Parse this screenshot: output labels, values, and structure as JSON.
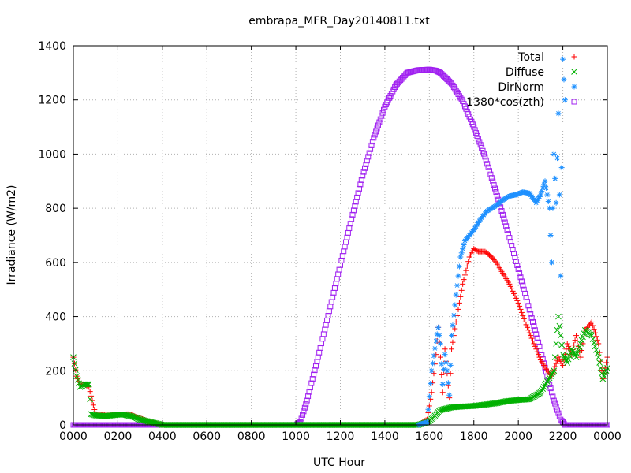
{
  "chart_data": {
    "type": "scatter",
    "title": "embrapa_MFR_Day20140811.txt",
    "xlabel": "UTC Hour",
    "ylabel": "Irradiance (W/m2)",
    "xlim": [
      0,
      24
    ],
    "ylim": [
      0,
      1400
    ],
    "grid": true,
    "legend_position": "top-right",
    "x_ticks": [
      {
        "v": 0,
        "label": "0000"
      },
      {
        "v": 2,
        "label": "0200"
      },
      {
        "v": 4,
        "label": "0400"
      },
      {
        "v": 6,
        "label": "0600"
      },
      {
        "v": 8,
        "label": "0800"
      },
      {
        "v": 10,
        "label": "1000"
      },
      {
        "v": 12,
        "label": "1200"
      },
      {
        "v": 14,
        "label": "1400"
      },
      {
        "v": 16,
        "label": "1600"
      },
      {
        "v": 18,
        "label": "1800"
      },
      {
        "v": 20,
        "label": "2000"
      },
      {
        "v": 22,
        "label": "2200"
      },
      {
        "v": 24,
        "label": "0000"
      }
    ],
    "y_ticks": [
      {
        "v": 0,
        "label": "0"
      },
      {
        "v": 200,
        "label": "200"
      },
      {
        "v": 400,
        "label": "400"
      },
      {
        "v": 600,
        "label": "600"
      },
      {
        "v": 800,
        "label": "800"
      },
      {
        "v": 1000,
        "label": "1000"
      },
      {
        "v": 1200,
        "label": "1200"
      },
      {
        "v": 1400,
        "label": "1400"
      }
    ],
    "series": [
      {
        "name": "Total",
        "marker": "plus",
        "color": "#ff0000",
        "x": [
          0.0,
          0.15,
          0.3,
          0.5,
          0.7,
          1.0,
          1.5,
          2.0,
          2.5,
          3.0,
          3.5,
          4.0,
          6.0,
          8.0,
          10.0,
          12.0,
          14.0,
          15.5,
          15.9,
          16.1,
          16.3,
          16.4,
          16.5,
          16.6,
          16.7,
          16.8,
          16.9,
          17.0,
          17.2,
          17.5,
          17.8,
          18.0,
          18.2,
          18.5,
          18.8,
          19.0,
          19.3,
          19.6,
          20.0,
          20.3,
          20.6,
          21.0,
          21.3,
          21.5,
          21.8,
          22.0,
          22.2,
          22.4,
          22.6,
          22.8,
          23.0,
          23.3,
          23.6,
          23.8,
          24.0
        ],
        "y": [
          250,
          180,
          150,
          150,
          140,
          40,
          35,
          38,
          40,
          25,
          10,
          0,
          0,
          0,
          0,
          0,
          0,
          0,
          20,
          120,
          260,
          360,
          250,
          120,
          280,
          190,
          100,
          280,
          380,
          520,
          620,
          650,
          640,
          640,
          620,
          600,
          560,
          520,
          450,
          380,
          320,
          240,
          200,
          180,
          250,
          220,
          300,
          260,
          330,
          250,
          350,
          380,
          300,
          170,
          250
        ]
      },
      {
        "name": "Diffuse",
        "marker": "cross",
        "color": "#00b000",
        "x": [
          0.0,
          0.15,
          0.3,
          0.5,
          0.7,
          0.8,
          1.0,
          1.5,
          2.0,
          2.3,
          2.7,
          3.0,
          3.5,
          4.0,
          6.0,
          8.0,
          10.0,
          12.0,
          14.0,
          15.5,
          15.9,
          16.0,
          16.2,
          16.5,
          17.0,
          17.5,
          18.0,
          18.5,
          19.0,
          19.5,
          20.0,
          20.5,
          21.0,
          21.3,
          21.6,
          21.8,
          22.0,
          22.2,
          22.4,
          22.6,
          22.8,
          23.0,
          23.3,
          23.6,
          23.8,
          24.0
        ],
        "y": [
          250,
          180,
          140,
          150,
          150,
          40,
          35,
          33,
          38,
          38,
          30,
          20,
          10,
          0,
          0,
          0,
          0,
          0,
          0,
          0,
          10,
          15,
          30,
          55,
          65,
          68,
          70,
          75,
          80,
          88,
          92,
          95,
          120,
          160,
          200,
          400,
          260,
          230,
          280,
          250,
          300,
          350,
          330,
          250,
          170,
          210
        ]
      },
      {
        "name": "DirNorm",
        "marker": "star",
        "color": "#1e90ff",
        "x": [
          15.5,
          15.9,
          16.1,
          16.3,
          16.4,
          16.5,
          16.6,
          16.7,
          16.8,
          16.9,
          17.0,
          17.2,
          17.4,
          17.6,
          17.8,
          18.0,
          18.3,
          18.6,
          19.0,
          19.3,
          19.6,
          19.9,
          20.2,
          20.5,
          20.8,
          21.0,
          21.2,
          21.4,
          21.5,
          21.6,
          21.7,
          21.8,
          21.9,
          22.0,
          22.1
        ],
        "y": [
          0,
          10,
          200,
          310,
          360,
          300,
          150,
          260,
          200,
          110,
          330,
          480,
          620,
          680,
          700,
          720,
          760,
          790,
          810,
          830,
          845,
          850,
          860,
          855,
          820,
          850,
          900,
          800,
          600,
          1000,
          820,
          1150,
          550,
          1350,
          1200
        ]
      },
      {
        "name": "1380*cos(zth)",
        "marker": "square",
        "color": "#a020f0",
        "x": [
          0.0,
          2.0,
          4.0,
          6.0,
          8.0,
          10.0,
          10.2,
          10.5,
          11.0,
          11.5,
          12.0,
          12.5,
          13.0,
          13.5,
          14.0,
          14.5,
          15.0,
          15.5,
          16.0,
          16.3,
          16.5,
          17.0,
          17.5,
          18.0,
          18.5,
          19.0,
          19.5,
          20.0,
          20.5,
          21.0,
          21.3,
          21.6,
          21.9,
          22.1,
          22.3,
          23.0,
          24.0
        ],
        "y": [
          0,
          0,
          0,
          0,
          0,
          0,
          10,
          90,
          250,
          420,
          590,
          760,
          920,
          1060,
          1175,
          1255,
          1300,
          1310,
          1312,
          1308,
          1300,
          1260,
          1195,
          1100,
          990,
          860,
          720,
          575,
          425,
          275,
          180,
          90,
          20,
          0,
          0,
          0,
          0
        ]
      }
    ]
  }
}
